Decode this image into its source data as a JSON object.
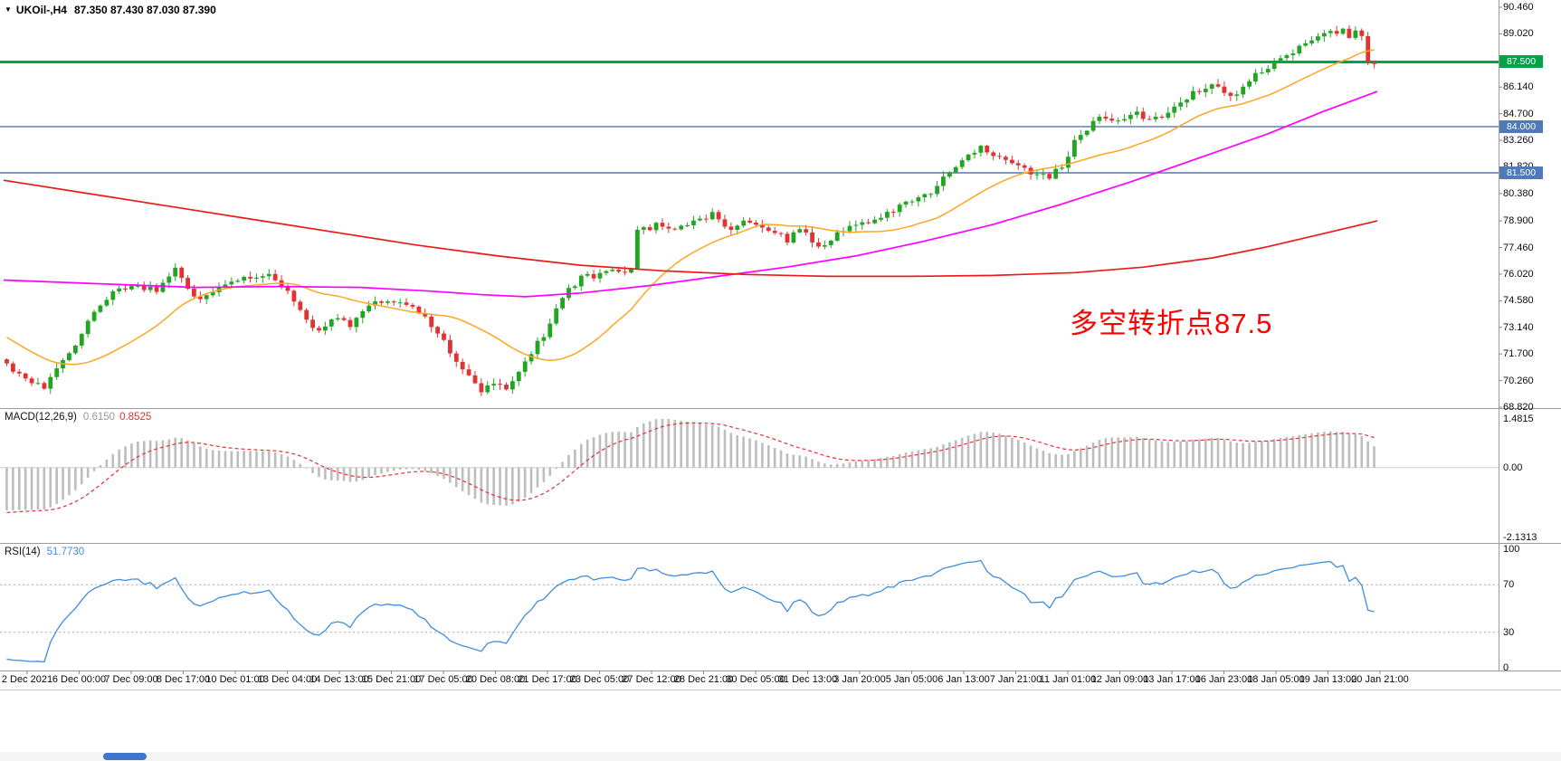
{
  "window": {
    "symbol_period": "UKOil-,H4",
    "ohlc_text": "87.350 87.430 87.030 87.390"
  },
  "colors": {
    "up": "#22A522",
    "down": "#E23232",
    "ma_fast": "#FFA526",
    "ma_mid": "#FF00FF",
    "ma_slow": "#EA1B1B",
    "macd_hist": "#BDBDBD",
    "macd_signal": "#E23232",
    "rsi": "#3E8EDE",
    "hline_green": "#00A448",
    "hline_blue": "#4F7AB8",
    "annotation": "#FF0000",
    "axis_border": "#9C9C9C",
    "level_dotted": "#ABABAB",
    "zero_line": "#CFCFCF",
    "scroll_thumb": "#3E77C9"
  },
  "chart_data": {
    "type": "candlestick",
    "symbol": "UKOil-",
    "timeframe": "H4",
    "last_candle": {
      "open": 87.35,
      "high": 87.43,
      "low": 87.03,
      "close": 87.39
    },
    "candle_count": 220,
    "y_axis": {
      "min": 68.82,
      "max": 90.46,
      "tick_labels": [
        "90.460",
        "89.020",
        "87.580",
        "86.140",
        "84.700",
        "83.260",
        "81.820",
        "80.380",
        "78.900",
        "77.460",
        "76.020",
        "74.580",
        "73.140",
        "71.700",
        "70.260",
        "68.820"
      ]
    },
    "x_axis": {
      "labels": [
        "2 Dec 2021",
        "6 Dec 00:00",
        "7 Dec 09:00",
        "8 Dec 17:00",
        "10 Dec 01:00",
        "13 Dec 04:00",
        "14 Dec 13:00",
        "15 Dec 21:00",
        "17 Dec 05:00",
        "20 Dec 08:00",
        "21 Dec 17:00",
        "23 Dec 05:00",
        "27 Dec 12:00",
        "28 Dec 21:00",
        "30 Dec 05:00",
        "31 Dec 13:00",
        "3 Jan 20:00",
        "5 Jan 05:00",
        "6 Jan 13:00",
        "7 Jan 21:00",
        "11 Jan 01:00",
        "12 Jan 09:00",
        "13 Jan 17:00",
        "16 Jan 23:00",
        "18 Jan 05:00",
        "19 Jan 13:00",
        "20 Jan 21:00"
      ]
    },
    "prehistory_anchors": [
      [
        -30,
        78.4
      ],
      [
        -24,
        76.6
      ],
      [
        -18,
        74.4
      ],
      [
        -12,
        72.6
      ],
      [
        -6,
        71.5
      ],
      [
        -1,
        71.3
      ]
    ],
    "close_anchors": [
      [
        0,
        71.2
      ],
      [
        3,
        70.3
      ],
      [
        6,
        69.9
      ],
      [
        9,
        71.2
      ],
      [
        13,
        73.4
      ],
      [
        17,
        75.0
      ],
      [
        21,
        75.4
      ],
      [
        24,
        75.1
      ],
      [
        27,
        76.3
      ],
      [
        30,
        74.7
      ],
      [
        34,
        75.2
      ],
      [
        38,
        75.8
      ],
      [
        42,
        76.1
      ],
      [
        45,
        75.2
      ],
      [
        47,
        74.0
      ],
      [
        50,
        72.9
      ],
      [
        53,
        73.8
      ],
      [
        55,
        73.1
      ],
      [
        58,
        74.3
      ],
      [
        61,
        74.6
      ],
      [
        64,
        74.3
      ],
      [
        67,
        73.8
      ],
      [
        70,
        72.4
      ],
      [
        73,
        70.9
      ],
      [
        76,
        69.6
      ],
      [
        78,
        70.1
      ],
      [
        80,
        69.8
      ],
      [
        83,
        71.3
      ],
      [
        86,
        72.7
      ],
      [
        89,
        74.9
      ],
      [
        92,
        75.8
      ],
      [
        96,
        76.1
      ],
      [
        99,
        76.2
      ],
      [
        100,
        76.3
      ],
      [
        101,
        78.3
      ],
      [
        104,
        78.7
      ],
      [
        107,
        78.3
      ],
      [
        110,
        78.8
      ],
      [
        113,
        79.2
      ],
      [
        116,
        78.5
      ],
      [
        119,
        78.9
      ],
      [
        122,
        78.3
      ],
      [
        125,
        77.9
      ],
      [
        127,
        78.4
      ],
      [
        130,
        77.5
      ],
      [
        133,
        78.2
      ],
      [
        136,
        78.8
      ],
      [
        140,
        79.1
      ],
      [
        144,
        79.9
      ],
      [
        147,
        80.2
      ],
      [
        150,
        81.2
      ],
      [
        153,
        82.3
      ],
      [
        156,
        82.9
      ],
      [
        159,
        82.3
      ],
      [
        162,
        81.8
      ],
      [
        165,
        81.4
      ],
      [
        167,
        81.3
      ],
      [
        169,
        81.8
      ],
      [
        171,
        83.2
      ],
      [
        174,
        84.2
      ],
      [
        176,
        84.6
      ],
      [
        178,
        84.3
      ],
      [
        180,
        84.8
      ],
      [
        183,
        84.3
      ],
      [
        185,
        84.6
      ],
      [
        188,
        85.4
      ],
      [
        191,
        86.0
      ],
      [
        193,
        86.3
      ],
      [
        196,
        85.7
      ],
      [
        198,
        86.0
      ],
      [
        200,
        86.9
      ],
      [
        202,
        87.2
      ],
      [
        204,
        87.8
      ],
      [
        206,
        88.1
      ],
      [
        208,
        88.5
      ],
      [
        210,
        88.8
      ],
      [
        212,
        89.1
      ],
      [
        214,
        89.3
      ],
      [
        215,
        88.8
      ],
      [
        216,
        89.2
      ],
      [
        217,
        88.9
      ],
      [
        218,
        87.5
      ],
      [
        219,
        87.39
      ]
    ],
    "moving_averages": [
      {
        "name": "fast-orange",
        "method": "sma",
        "period": 21
      },
      {
        "name": "mid-magenta",
        "anchors": [
          [
            0,
            75.7
          ],
          [
            0.07,
            75.5
          ],
          [
            0.14,
            75.3
          ],
          [
            0.2,
            75.35
          ],
          [
            0.26,
            75.3
          ],
          [
            0.31,
            75.1
          ],
          [
            0.35,
            74.9
          ],
          [
            0.38,
            74.8
          ],
          [
            0.42,
            75.0
          ],
          [
            0.47,
            75.4
          ],
          [
            0.52,
            75.9
          ],
          [
            0.57,
            76.4
          ],
          [
            0.62,
            77.0
          ],
          [
            0.67,
            77.8
          ],
          [
            0.72,
            78.7
          ],
          [
            0.77,
            79.8
          ],
          [
            0.82,
            81.0
          ],
          [
            0.87,
            82.3
          ],
          [
            0.92,
            83.6
          ],
          [
            0.96,
            84.8
          ],
          [
            1,
            85.9
          ]
        ]
      },
      {
        "name": "slow-red",
        "anchors": [
          [
            0,
            81.1
          ],
          [
            0.06,
            80.4
          ],
          [
            0.12,
            79.7
          ],
          [
            0.18,
            79.0
          ],
          [
            0.24,
            78.3
          ],
          [
            0.3,
            77.6
          ],
          [
            0.36,
            77.0
          ],
          [
            0.42,
            76.5
          ],
          [
            0.48,
            76.2
          ],
          [
            0.54,
            76.0
          ],
          [
            0.6,
            75.9
          ],
          [
            0.66,
            75.9
          ],
          [
            0.72,
            75.95
          ],
          [
            0.78,
            76.1
          ],
          [
            0.83,
            76.4
          ],
          [
            0.88,
            76.9
          ],
          [
            0.92,
            77.5
          ],
          [
            0.96,
            78.2
          ],
          [
            1,
            78.9
          ]
        ]
      }
    ],
    "hlines": [
      {
        "price": 87.5,
        "label": "87.500",
        "color": "green"
      },
      {
        "price": 84.0,
        "label": "84.000",
        "color": "blue"
      },
      {
        "price": 81.5,
        "label": "81.500",
        "color": "blue"
      }
    ],
    "annotation": {
      "text": "多空转折点87.5"
    },
    "macd": {
      "label": "MACD(12,26,9)",
      "main_value": "0.6150",
      "signal_value": "0.8525",
      "params": [
        12,
        26,
        9
      ],
      "y_min": -2.1313,
      "y_max": 1.4815,
      "y_ticks": [
        {
          "v": 1.4815,
          "label": "1.4815"
        },
        {
          "v": 0,
          "label": "0.00"
        },
        {
          "v": -2.1313,
          "label": "-2.1313"
        }
      ]
    },
    "rsi": {
      "label": "RSI(14)",
      "value": "51.7730",
      "period": 14,
      "levels": [
        70,
        30
      ],
      "y_min": 0,
      "y_max": 100,
      "y_ticks": [
        {
          "v": 100,
          "label": "100"
        },
        {
          "v": 70,
          "label": "70"
        },
        {
          "v": 30,
          "label": "30"
        },
        {
          "v": 0,
          "label": "0"
        }
      ]
    }
  }
}
